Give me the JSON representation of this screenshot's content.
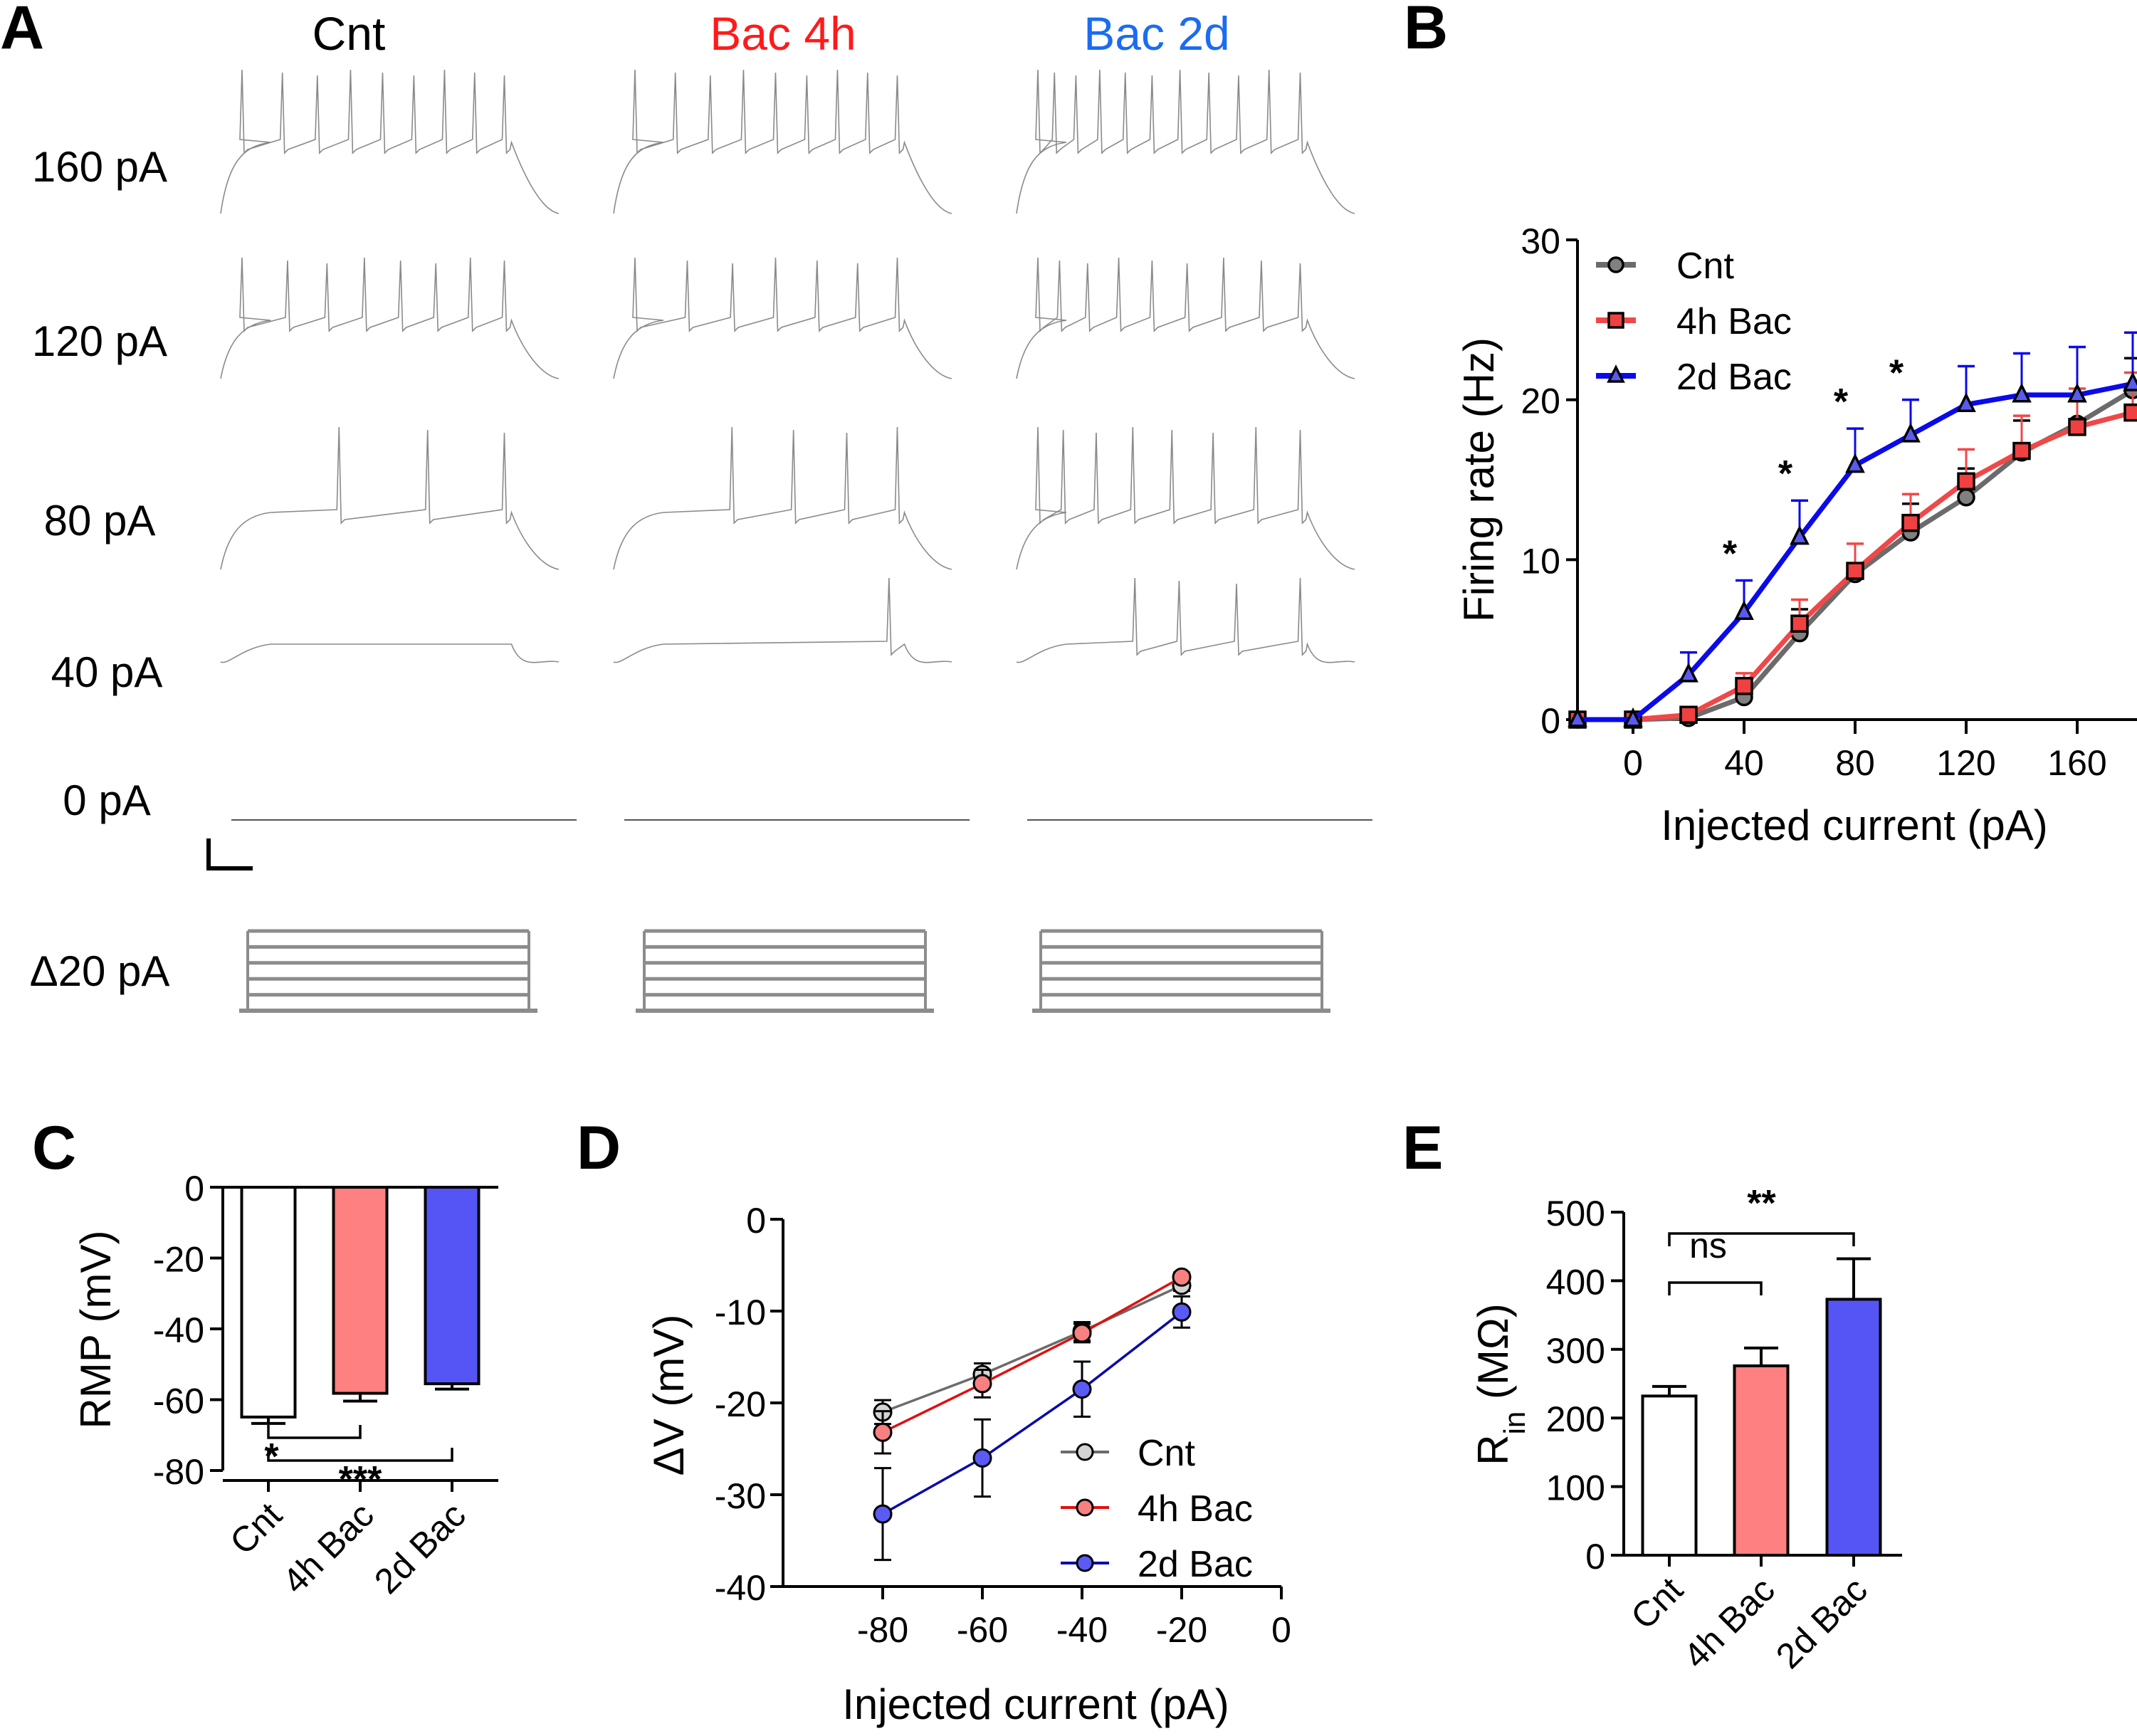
{
  "figure": {
    "panel_labels": [
      "A",
      "B",
      "C",
      "D",
      "E"
    ]
  },
  "panel_a": {
    "column_titles": [
      {
        "label": "Cnt",
        "color": "#000000"
      },
      {
        "label": "Bac 4h",
        "color": "#ff1a1a"
      },
      {
        "label": "Bac 2d",
        "color": "#1a6cf0"
      }
    ],
    "row_labels": [
      "160 pA",
      "120 pA",
      "80 pA",
      "40 pA",
      "0 pA"
    ],
    "stimulus_label": "Δ20 pA",
    "trace_color": "#8a8a8a",
    "stimulus_color": "#8c8c8c",
    "spike_counts": {
      "160 pA": [
        9,
        9,
        11
      ],
      "120 pA": [
        8,
        7,
        9
      ],
      "80 pA": [
        3,
        4,
        8
      ],
      "40 pA": [
        0,
        1,
        4
      ],
      "0 pA": [
        0,
        0,
        0
      ]
    },
    "stimulus_steps": 5
  },
  "chart_data": [
    {
      "id": "B",
      "type": "line",
      "title": "",
      "xlabel": "Injected current (pA)",
      "ylabel": "Firing rate (Hz)",
      "xlim": [
        -20,
        180
      ],
      "ylim": [
        0,
        30
      ],
      "xticks": [
        0,
        40,
        80,
        120,
        160
      ],
      "yticks": [
        0,
        10,
        20,
        30
      ],
      "legend_position": "top-left",
      "x": [
        -20,
        0,
        20,
        40,
        60,
        80,
        100,
        120,
        140,
        160,
        180
      ],
      "series": [
        {
          "name": "Cnt",
          "color": "#6b6b6b",
          "marker": "circle",
          "marker_fill": "#808080",
          "values": [
            0,
            0,
            0.1,
            1.4,
            5.4,
            9.1,
            11.7,
            13.9,
            16.7,
            18.5,
            20.6
          ],
          "errors": [
            0,
            0,
            0,
            0,
            1.5,
            0,
            1.8,
            1.8,
            2.0,
            0,
            2.0
          ]
        },
        {
          "name": "4h Bac",
          "color": "#f04848",
          "marker": "square",
          "marker_fill": "#f04040",
          "values": [
            0,
            0,
            0.3,
            2.1,
            6.0,
            9.3,
            12.3,
            14.9,
            16.8,
            18.3,
            19.2
          ],
          "errors": [
            0,
            0,
            0,
            0.8,
            1.5,
            1.7,
            1.8,
            2.0,
            2.2,
            2.4,
            2.5
          ]
        },
        {
          "name": "2d Bac",
          "color": "#0a0aeb",
          "marker": "triangle",
          "marker_fill": "#5a5af0",
          "values": [
            0,
            0,
            2.8,
            6.7,
            11.4,
            15.9,
            17.8,
            19.7,
            20.3,
            20.3,
            21.0
          ],
          "errors": [
            0,
            0,
            1.4,
            2.0,
            2.3,
            2.3,
            2.2,
            2.4,
            2.6,
            3.0,
            3.2
          ]
        }
      ],
      "annotations": [
        {
          "x": 40,
          "text": "*"
        },
        {
          "x": 60,
          "text": "*"
        },
        {
          "x": 80,
          "text": "*"
        },
        {
          "x": 100,
          "text": "*"
        }
      ]
    },
    {
      "id": "C",
      "type": "bar",
      "title": "",
      "xlabel": "",
      "ylabel": "RMP (mV)",
      "ylim": [
        -80,
        0
      ],
      "yticks": [
        0,
        -20,
        -40,
        -60,
        -80
      ],
      "categories": [
        "Cnt",
        "4h Bac",
        "2d Bac"
      ],
      "colors": [
        "#ffffff",
        "#ff8080",
        "#5555f5"
      ],
      "values": [
        -64.9,
        -58.2,
        -55.5
      ],
      "errors": [
        1.8,
        2.2,
        1.5
      ],
      "significance": [
        {
          "from": 0,
          "to": 1,
          "label": "*"
        },
        {
          "from": 0,
          "to": 2,
          "label": "***"
        }
      ]
    },
    {
      "id": "D",
      "type": "line",
      "title": "",
      "xlabel": "Injected current (pA)",
      "ylabel": "ΔV (mV)",
      "xlim": [
        -100,
        0
      ],
      "ylim": [
        -40,
        0
      ],
      "xticks": [
        -80,
        -60,
        -40,
        -20,
        0
      ],
      "yticks": [
        0,
        -10,
        -20,
        -30,
        -40
      ],
      "legend_position": "bottom-right",
      "x": [
        -80,
        -60,
        -40,
        -20
      ],
      "series": [
        {
          "name": "Cnt",
          "color": "#6b6b6b",
          "marker_fill": "#d4d4d4",
          "values": [
            -21.0,
            -16.9,
            -12.2,
            -7.2
          ],
          "errors": [
            1.3,
            1.2,
            1.0,
            0.6
          ]
        },
        {
          "name": "4h Bac",
          "color": "#e01010",
          "marker_fill": "#f88080",
          "values": [
            -23.2,
            -17.9,
            -12.4,
            -6.3
          ],
          "errors": [
            2.3,
            1.5,
            1.0,
            0.5
          ]
        },
        {
          "name": "2d Bac",
          "color": "#0a0aa8",
          "marker_fill": "#5a5af5",
          "values": [
            -32.1,
            -26.0,
            -18.5,
            -10.1
          ],
          "errors": [
            5.0,
            4.2,
            3.0,
            1.7
          ]
        }
      ]
    },
    {
      "id": "E",
      "type": "bar",
      "title": "",
      "xlabel": "",
      "ylabel": "R_in (MΩ)",
      "ylabel_main": "R",
      "ylabel_sub": "in",
      "ylabel_unit": " (MΩ)",
      "ylim": [
        0,
        500
      ],
      "yticks": [
        0,
        100,
        200,
        300,
        400,
        500
      ],
      "categories": [
        "Cnt",
        "4h Bac",
        "2d Bac"
      ],
      "colors": [
        "#ffffff",
        "#ff8080",
        "#5555f5"
      ],
      "values": [
        232,
        276,
        373
      ],
      "errors": [
        14,
        26,
        59
      ],
      "significance": [
        {
          "from": 0,
          "to": 1,
          "label": "ns"
        },
        {
          "from": 0,
          "to": 2,
          "label": "**"
        }
      ]
    }
  ]
}
